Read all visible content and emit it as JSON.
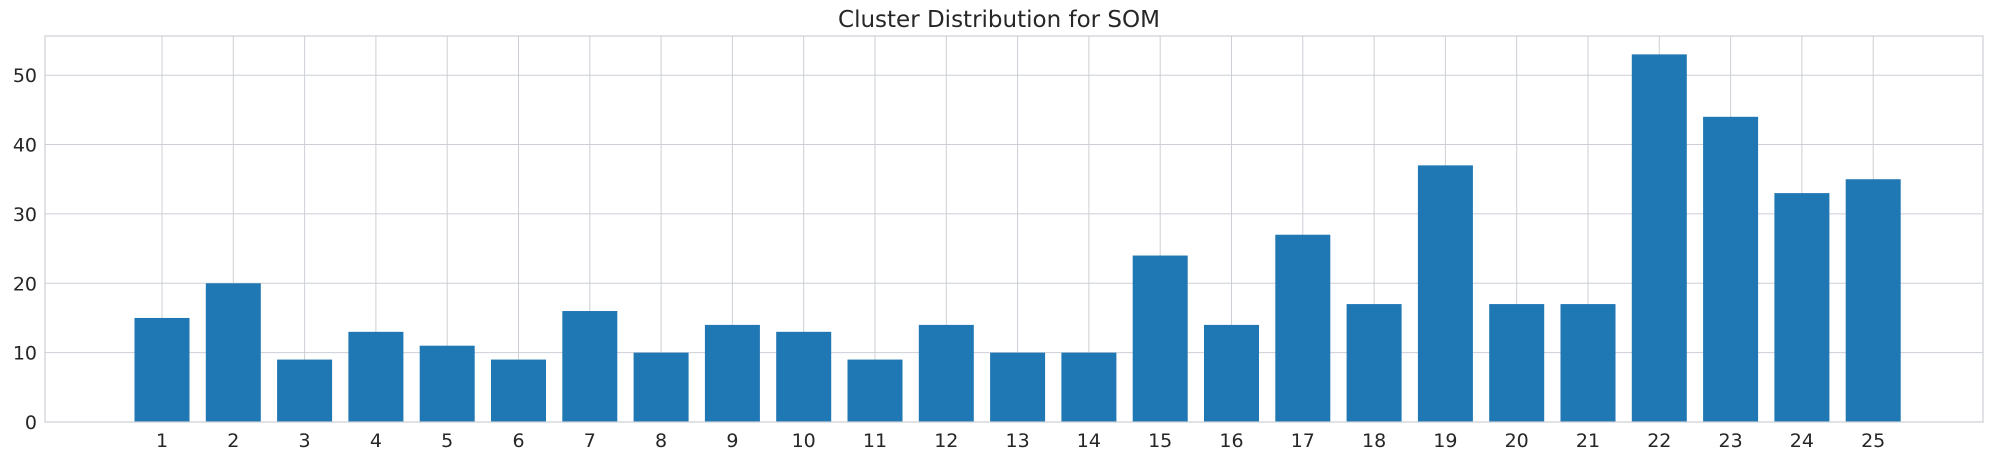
{
  "chart_data": {
    "type": "bar",
    "title": "Cluster Distribution for SOM",
    "xlabel": "",
    "ylabel": "",
    "categories": [
      "1",
      "2",
      "3",
      "4",
      "5",
      "6",
      "7",
      "8",
      "9",
      "10",
      "11",
      "12",
      "13",
      "14",
      "15",
      "16",
      "17",
      "18",
      "19",
      "20",
      "21",
      "22",
      "23",
      "24",
      "25"
    ],
    "values": [
      15,
      20,
      9,
      13,
      11,
      9,
      16,
      10,
      14,
      13,
      9,
      14,
      10,
      10,
      24,
      14,
      27,
      17,
      37,
      17,
      17,
      53,
      44,
      33,
      35
    ],
    "ylim": [
      0,
      55.65
    ],
    "yticks": [
      0,
      10,
      20,
      30,
      40,
      50
    ],
    "grid": true,
    "bar_color": "#1f77b4",
    "grid_color": "#cccfd6"
  }
}
